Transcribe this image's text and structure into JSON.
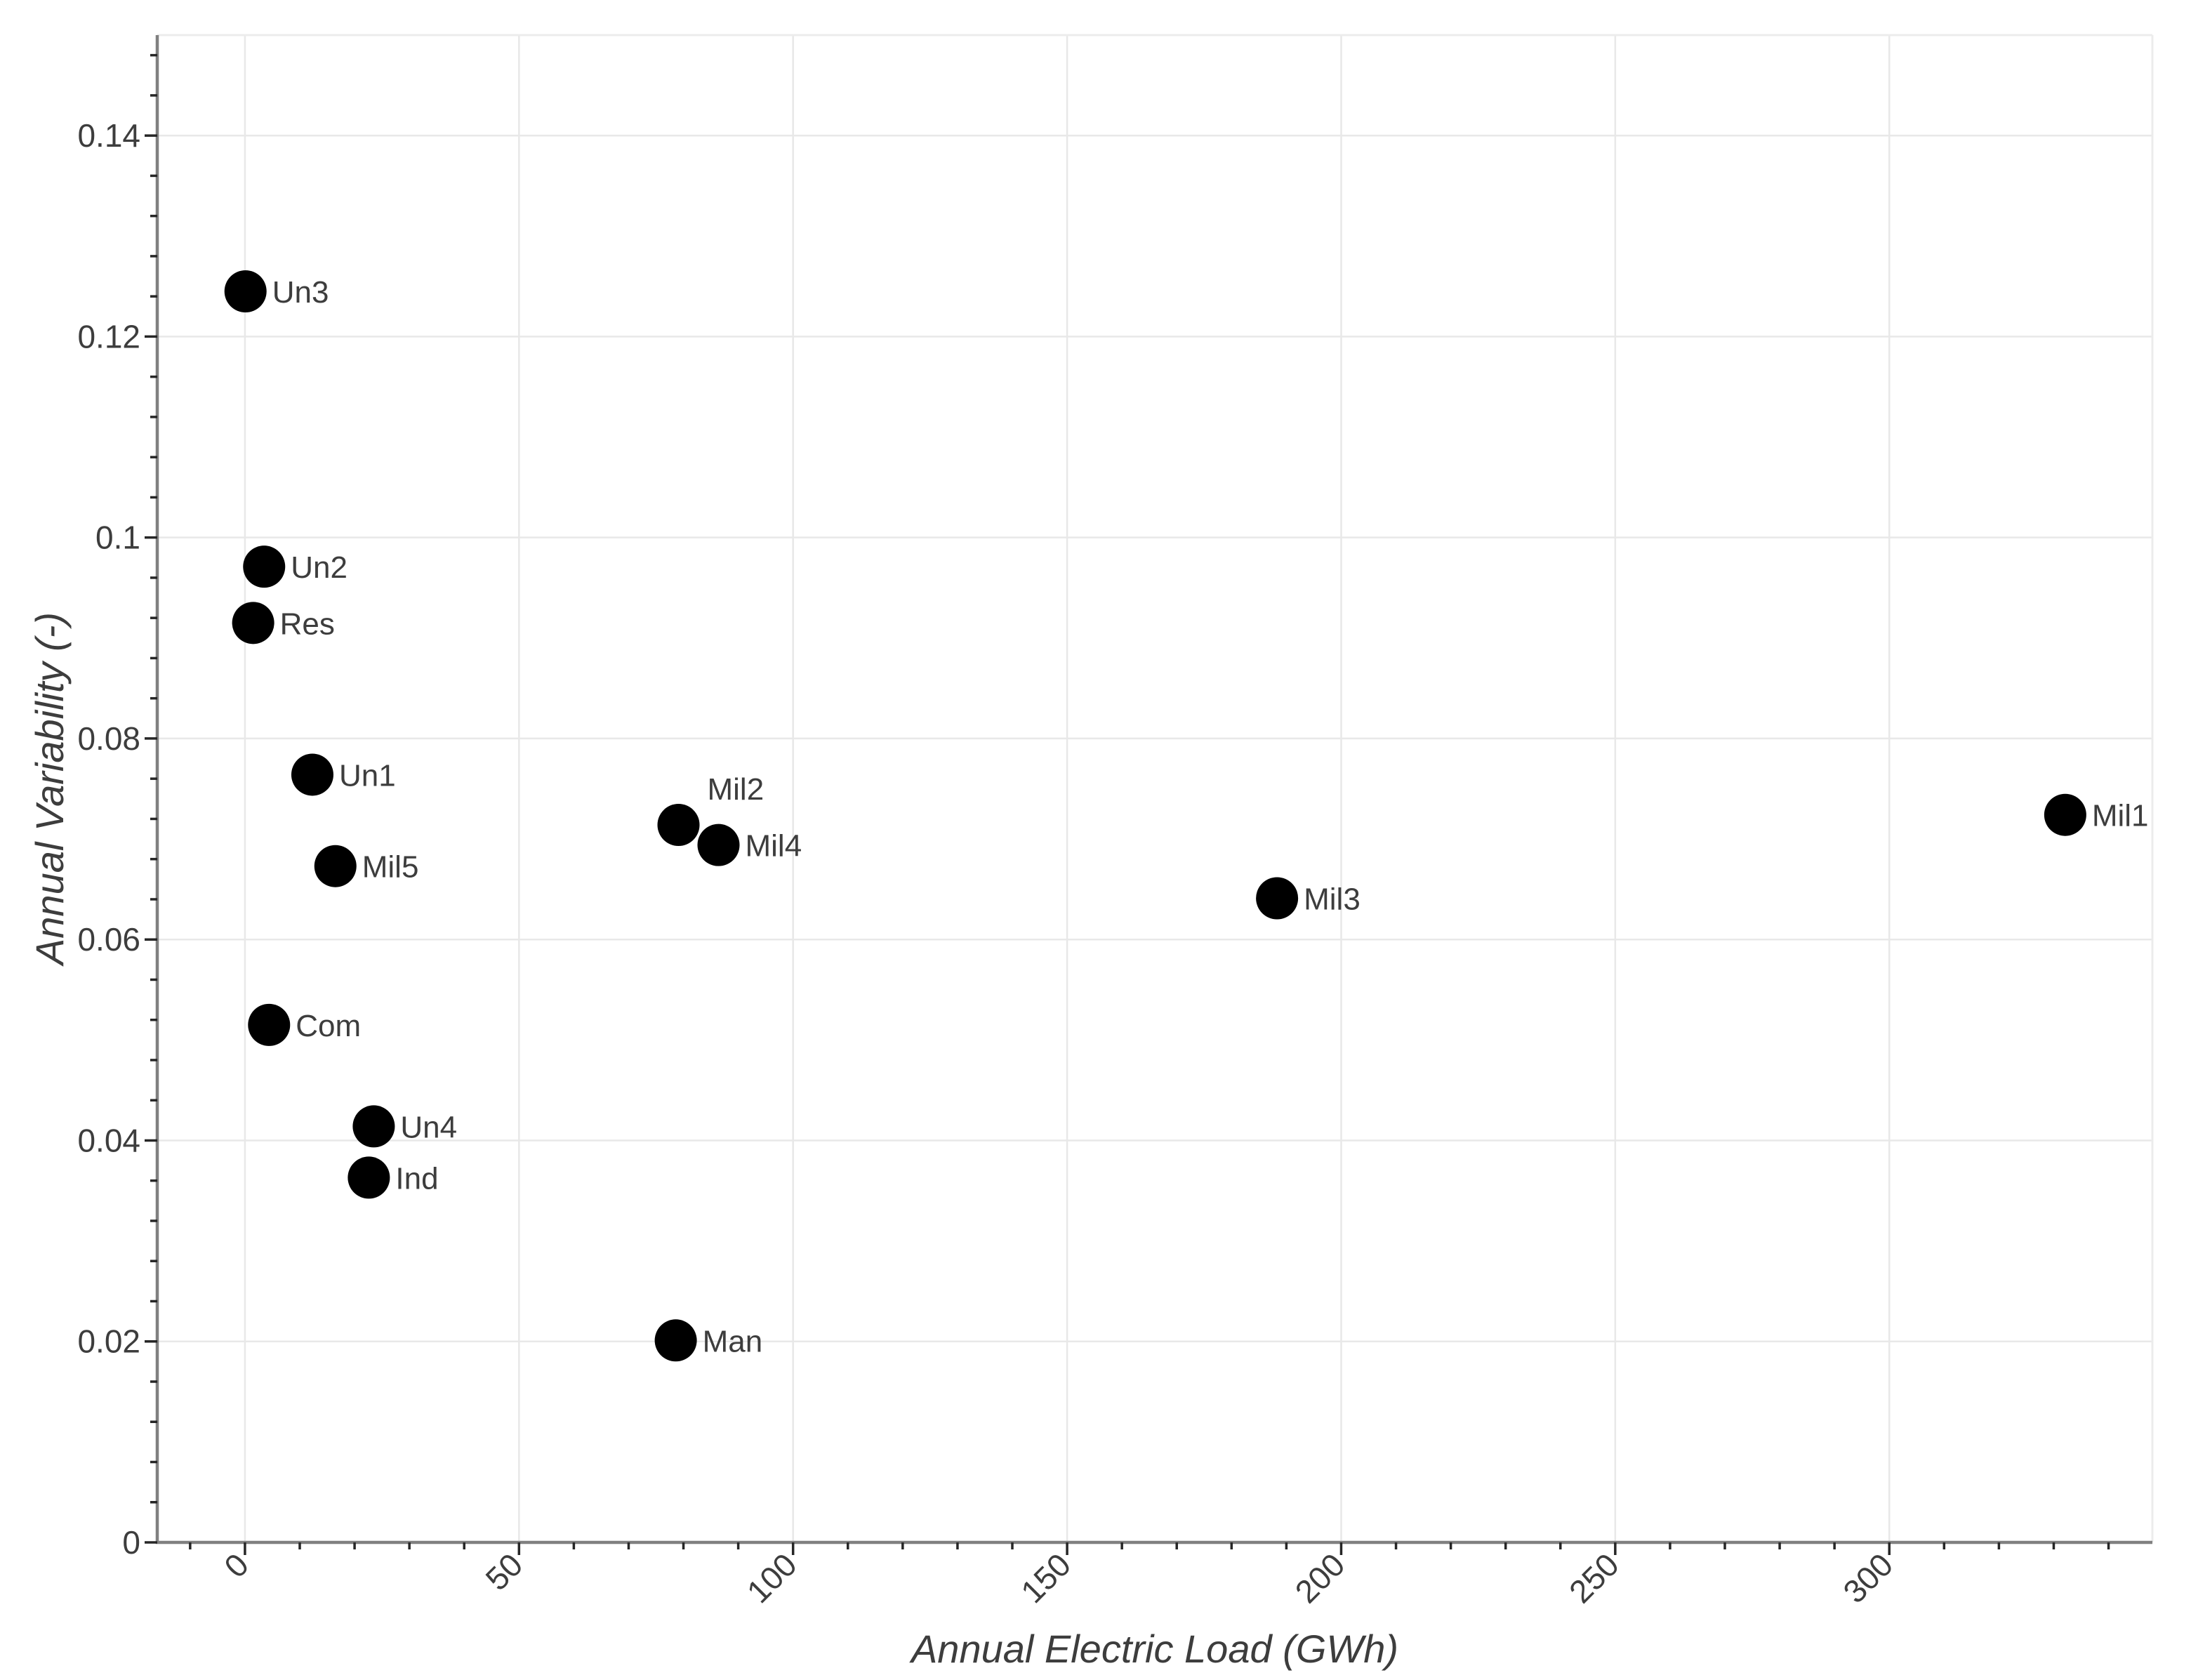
{
  "chart_data": {
    "type": "scatter",
    "title": "",
    "xlabel": "Annual Electric Load (GWh)",
    "ylabel": "Annual Variability (-)",
    "xlim": [
      -16,
      348
    ],
    "ylim": [
      0,
      0.15
    ],
    "grid": "on",
    "legend": "none",
    "x_ticks": {
      "values": [
        0,
        50,
        100,
        150,
        200,
        250,
        300
      ],
      "labels": [
        "0",
        "50",
        "100",
        "150",
        "200",
        "250",
        "300"
      ],
      "label_rotation_deg": -45,
      "minor_step": 10,
      "minor_min": -10,
      "minor_max": 340
    },
    "y_ticks": {
      "values": [
        0,
        0.02,
        0.04,
        0.06,
        0.08,
        0.1,
        0.12,
        0.14
      ],
      "labels": [
        "0",
        "0.02",
        "0.04",
        "0.06",
        "0.08",
        "0.1",
        "0.12",
        "0.14"
      ],
      "minor_step": 0.004,
      "minor_min": 0.004,
      "minor_max": 0.148
    },
    "marker": {
      "shape": "circle",
      "radius_px": 30,
      "color": "#000000"
    },
    "points": [
      {
        "label": "Un3",
        "x": 0.1,
        "y": 0.1245,
        "label_pos": "right"
      },
      {
        "label": "Un2",
        "x": 3.5,
        "y": 0.0971,
        "label_pos": "right"
      },
      {
        "label": "Res",
        "x": 1.5,
        "y": 0.0915,
        "label_pos": "right"
      },
      {
        "label": "Un1",
        "x": 12.3,
        "y": 0.0764,
        "label_pos": "right"
      },
      {
        "label": "Mil5",
        "x": 16.5,
        "y": 0.0673,
        "label_pos": "right"
      },
      {
        "label": "Com",
        "x": 4.4,
        "y": 0.0515,
        "label_pos": "right"
      },
      {
        "label": "Un4",
        "x": 23.5,
        "y": 0.0414,
        "label_pos": "right"
      },
      {
        "label": "Ind",
        "x": 22.6,
        "y": 0.0363,
        "label_pos": "right"
      },
      {
        "label": "Man",
        "x": 78.6,
        "y": 0.0201,
        "label_pos": "right"
      },
      {
        "label": "Mil2",
        "x": 79.1,
        "y": 0.0714,
        "label_pos": "above-right"
      },
      {
        "label": "Mil4",
        "x": 86.4,
        "y": 0.0694,
        "label_pos": "right"
      },
      {
        "label": "Mil3",
        "x": 188.3,
        "y": 0.0641,
        "label_pos": "right"
      },
      {
        "label": "Mil1",
        "x": 332.1,
        "y": 0.0724,
        "label_pos": "right"
      }
    ],
    "colors": {
      "background": "#ffffff",
      "marker": "#000000",
      "grid": "#e8e8e8",
      "frame": "#ececec",
      "axis_line": "#808080",
      "tick_mark": "#262626",
      "text": "#3d3d3d"
    }
  }
}
